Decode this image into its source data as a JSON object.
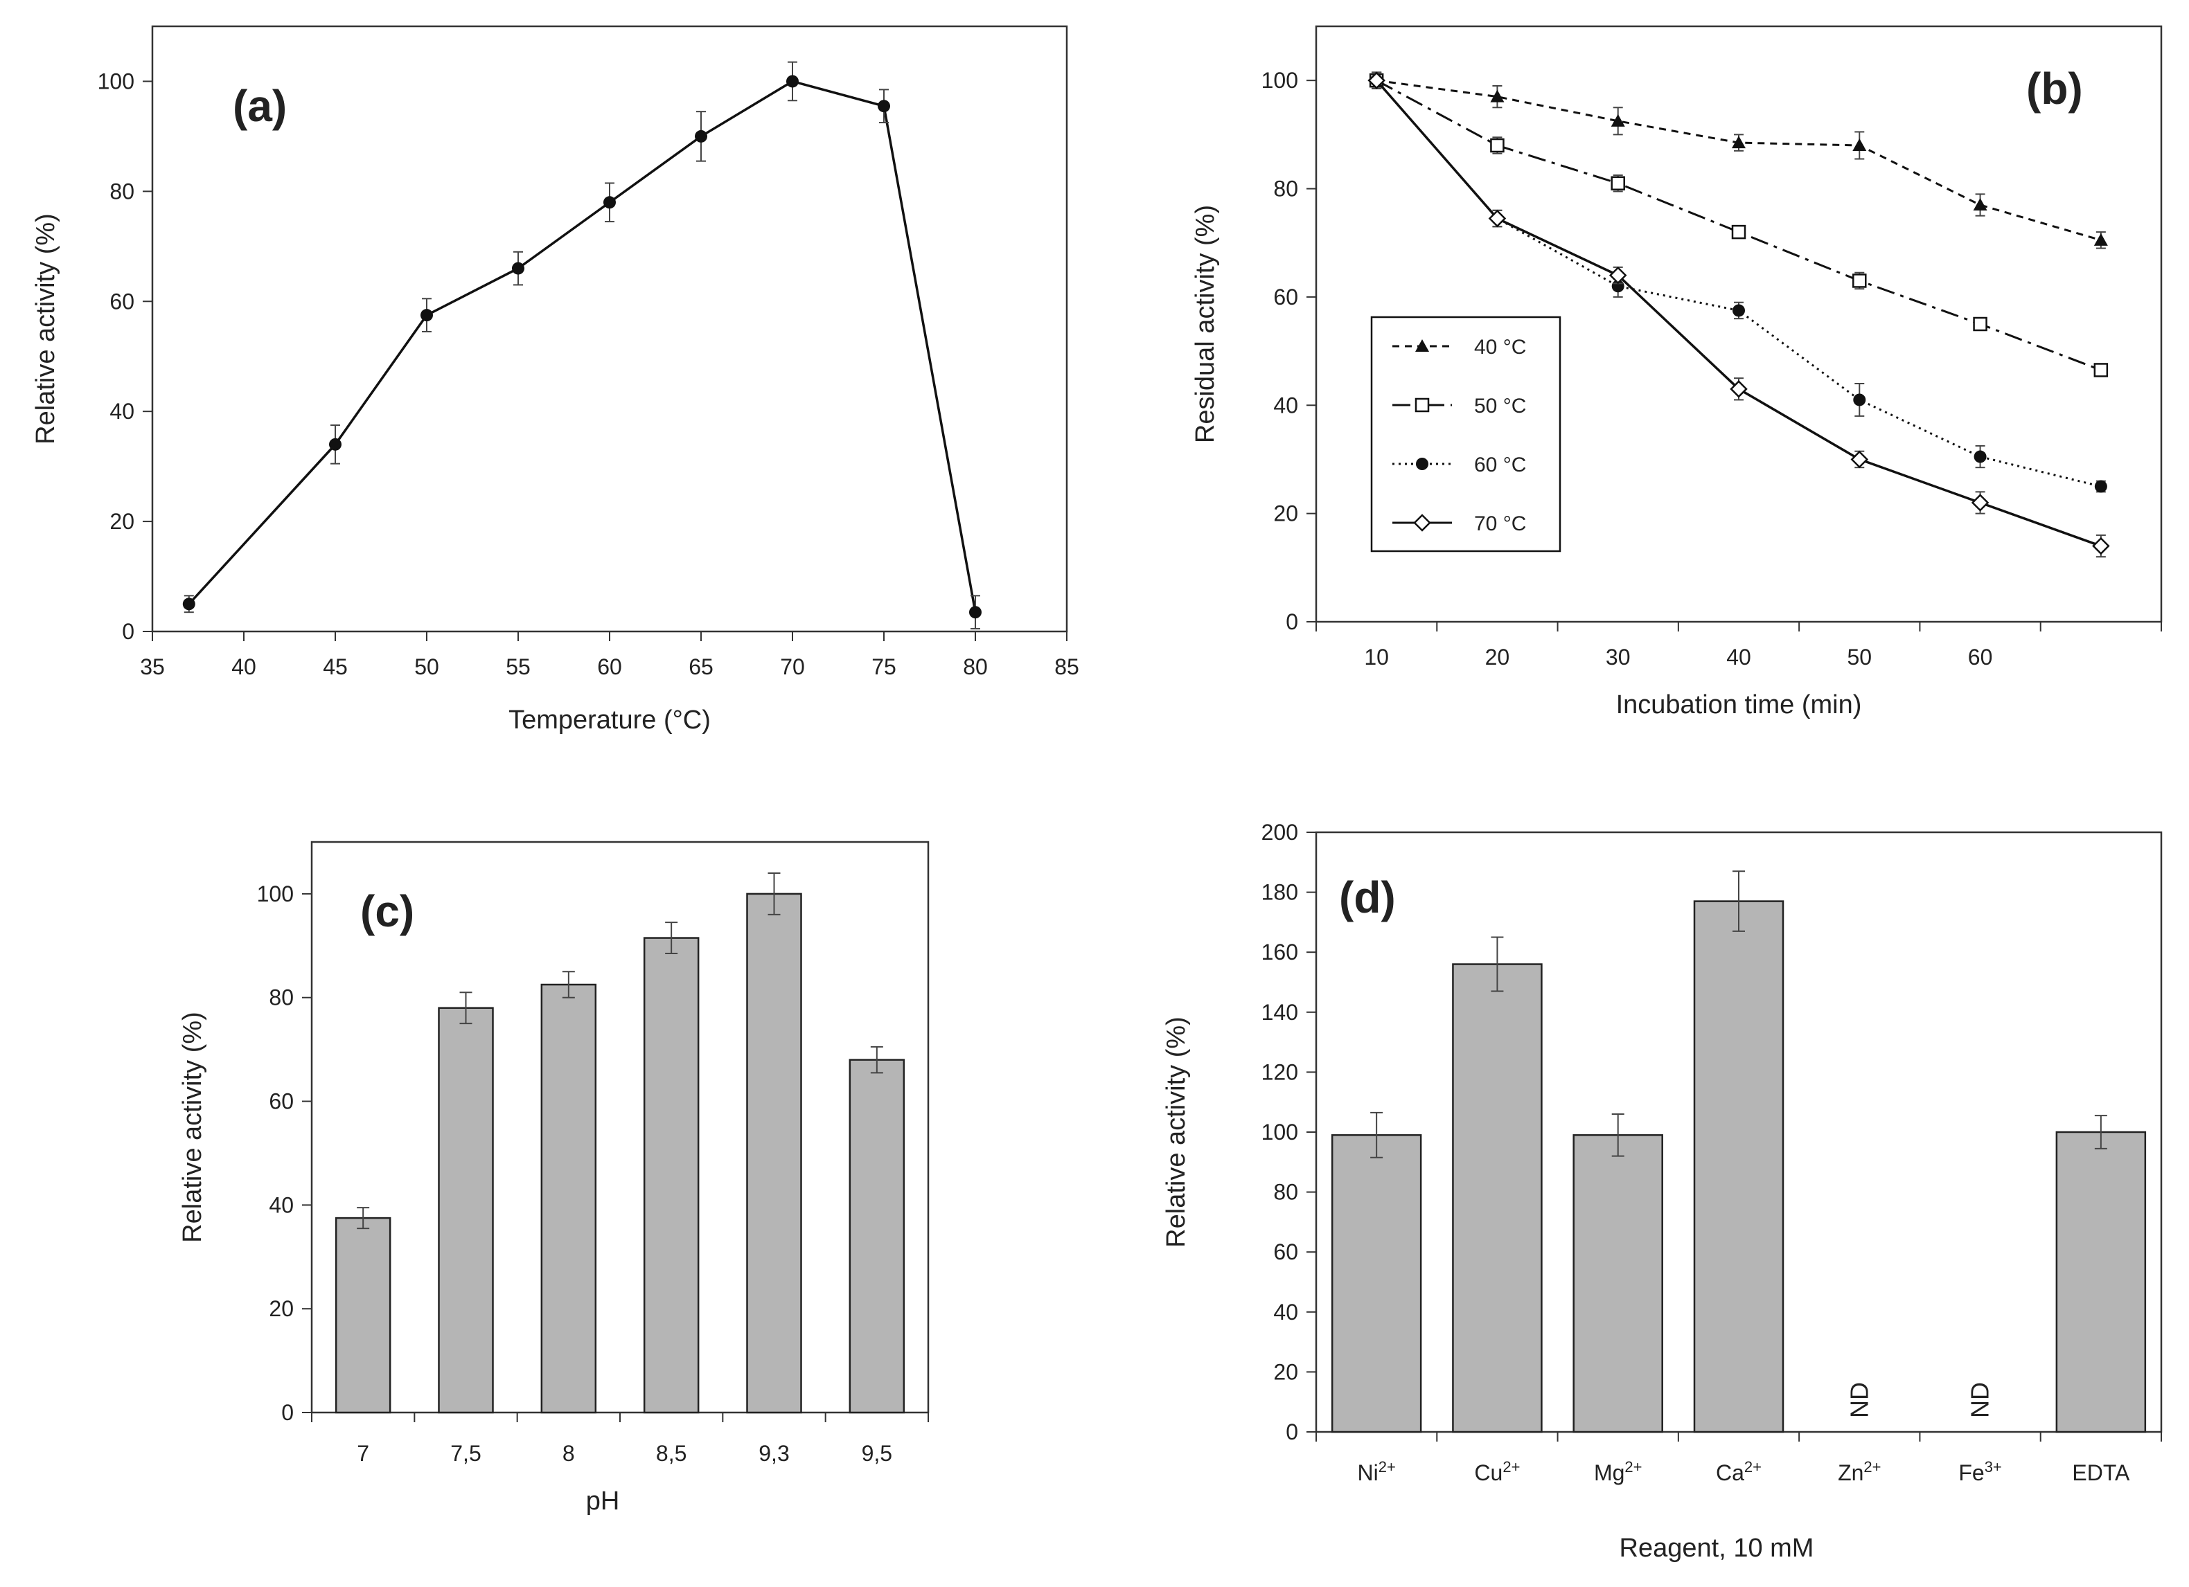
{
  "chart_data": [
    {
      "id": "a",
      "type": "line",
      "panel_label": "(a)",
      "xlabel": "Temperature (°C)",
      "ylabel": "Relative activity (%)",
      "xlim": [
        35,
        85
      ],
      "ylim": [
        0,
        110
      ],
      "xticks": [
        35,
        40,
        45,
        50,
        55,
        60,
        65,
        70,
        75,
        80,
        85
      ],
      "yticks": [
        0,
        20,
        40,
        60,
        80,
        100
      ],
      "grid": false,
      "series": [
        {
          "name": "Relative activity",
          "x": [
            37,
            45,
            50,
            55,
            60,
            65,
            70,
            75,
            80
          ],
          "y": [
            5,
            34,
            57.5,
            66,
            78,
            90,
            100,
            95.5,
            3.5
          ],
          "err": [
            1.5,
            3.5,
            3,
            3,
            3.5,
            4.5,
            3.5,
            3,
            3
          ]
        }
      ]
    },
    {
      "id": "b",
      "type": "line",
      "panel_label": "(b)",
      "xlabel": "Incubation time (min)",
      "ylabel": "Residual activity  (%)",
      "xlim": [
        5,
        75
      ],
      "ylim": [
        0,
        110
      ],
      "xticks": [
        10,
        20,
        30,
        40,
        50,
        60
      ],
      "yticks": [
        0,
        20,
        40,
        60,
        80,
        100
      ],
      "grid": false,
      "legend_position": "center-left",
      "series": [
        {
          "name": "40 °C",
          "marker": "triangle",
          "line": "dashed",
          "x": [
            10,
            20,
            30,
            40,
            50,
            60,
            70
          ],
          "y": [
            100,
            97,
            92.5,
            88.5,
            88,
            77,
            70.5
          ],
          "err": [
            1.5,
            2,
            2.5,
            1.5,
            2.5,
            2,
            1.5
          ]
        },
        {
          "name": "50 °C",
          "marker": "open-square",
          "line": "dash-dot",
          "x": [
            10,
            20,
            30,
            40,
            50,
            60,
            70
          ],
          "y": [
            100,
            88,
            81,
            72,
            63,
            55,
            46.5
          ],
          "err": [
            1.5,
            1.5,
            1.5,
            1,
            1.5,
            1,
            1
          ]
        },
        {
          "name": "60 °C",
          "marker": "filled-circle",
          "line": "dotted",
          "x": [
            10,
            20,
            30,
            40,
            50,
            60,
            70
          ],
          "y": [
            100,
            74.5,
            62,
            57.5,
            41,
            30.5,
            25
          ],
          "err": [
            1.5,
            1.5,
            2,
            1.5,
            3,
            2,
            1
          ]
        },
        {
          "name": "70 °C",
          "marker": "open-diamond",
          "line": "solid",
          "x": [
            10,
            20,
            30,
            40,
            50,
            60,
            70
          ],
          "y": [
            100,
            74.5,
            64,
            43,
            30,
            22,
            14
          ],
          "err": [
            1.5,
            1.5,
            1.5,
            2,
            1.5,
            2,
            2
          ]
        }
      ]
    },
    {
      "id": "c",
      "type": "bar",
      "panel_label": "(c)",
      "xlabel": "pH",
      "ylabel": "Relative activity  (%)",
      "ylim": [
        0,
        110
      ],
      "yticks": [
        0,
        20,
        40,
        60,
        80,
        100
      ],
      "grid": false,
      "categories": [
        "7",
        "7,5",
        "8",
        "8,5",
        "9,3",
        "9,5"
      ],
      "values": [
        37.5,
        78,
        82.5,
        91.5,
        100,
        68
      ],
      "err": [
        2,
        3,
        2.5,
        3,
        4,
        2.5
      ]
    },
    {
      "id": "d",
      "type": "bar",
      "panel_label": "(d)",
      "xlabel": "Reagent, 10 mM",
      "ylabel": "Relative activity  (%)",
      "ylim": [
        0,
        200
      ],
      "yticks": [
        0,
        20,
        40,
        60,
        80,
        100,
        120,
        140,
        160,
        180,
        200
      ],
      "grid": false,
      "categories": [
        {
          "base": "Ni",
          "sup": "2+"
        },
        {
          "base": "Cu",
          "sup": "2+"
        },
        {
          "base": "Mg",
          "sup": "2+"
        },
        {
          "base": "Ca",
          "sup": "2+"
        },
        {
          "base": "Zn",
          "sup": "2+"
        },
        {
          "base": "Fe",
          "sup": "3+"
        },
        {
          "base": "EDTA",
          "sup": ""
        }
      ],
      "values": [
        99,
        156,
        99,
        177,
        null,
        null,
        100
      ],
      "err": [
        7.5,
        9,
        7,
        10,
        null,
        null,
        5.5
      ],
      "annotations": [
        "",
        "",
        "",
        "",
        "ND",
        "ND",
        ""
      ]
    }
  ]
}
